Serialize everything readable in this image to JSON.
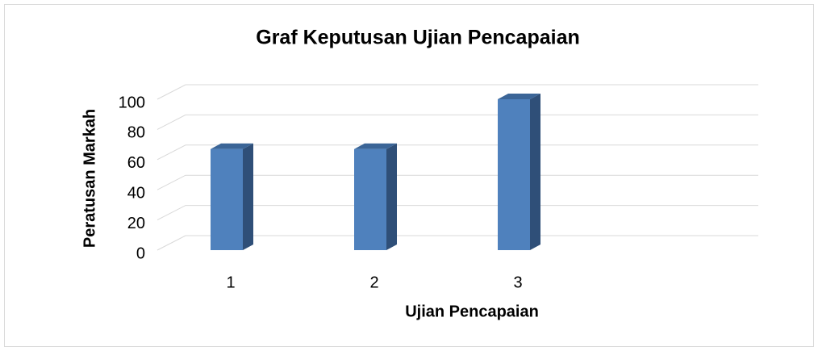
{
  "chart_data": {
    "type": "bar",
    "title": "Graf Keputusan Ujian Pencapaian",
    "x_label": "Ujian Pencapaian",
    "y_label": "Peratusan Markah",
    "categories": [
      "1",
      "2",
      "3"
    ],
    "values": [
      67,
      67,
      100
    ],
    "color": "#4f81bd",
    "ylim": [
      0,
      100
    ],
    "yticks": [
      0,
      20,
      40,
      60,
      80,
      100
    ],
    "grid": true
  }
}
